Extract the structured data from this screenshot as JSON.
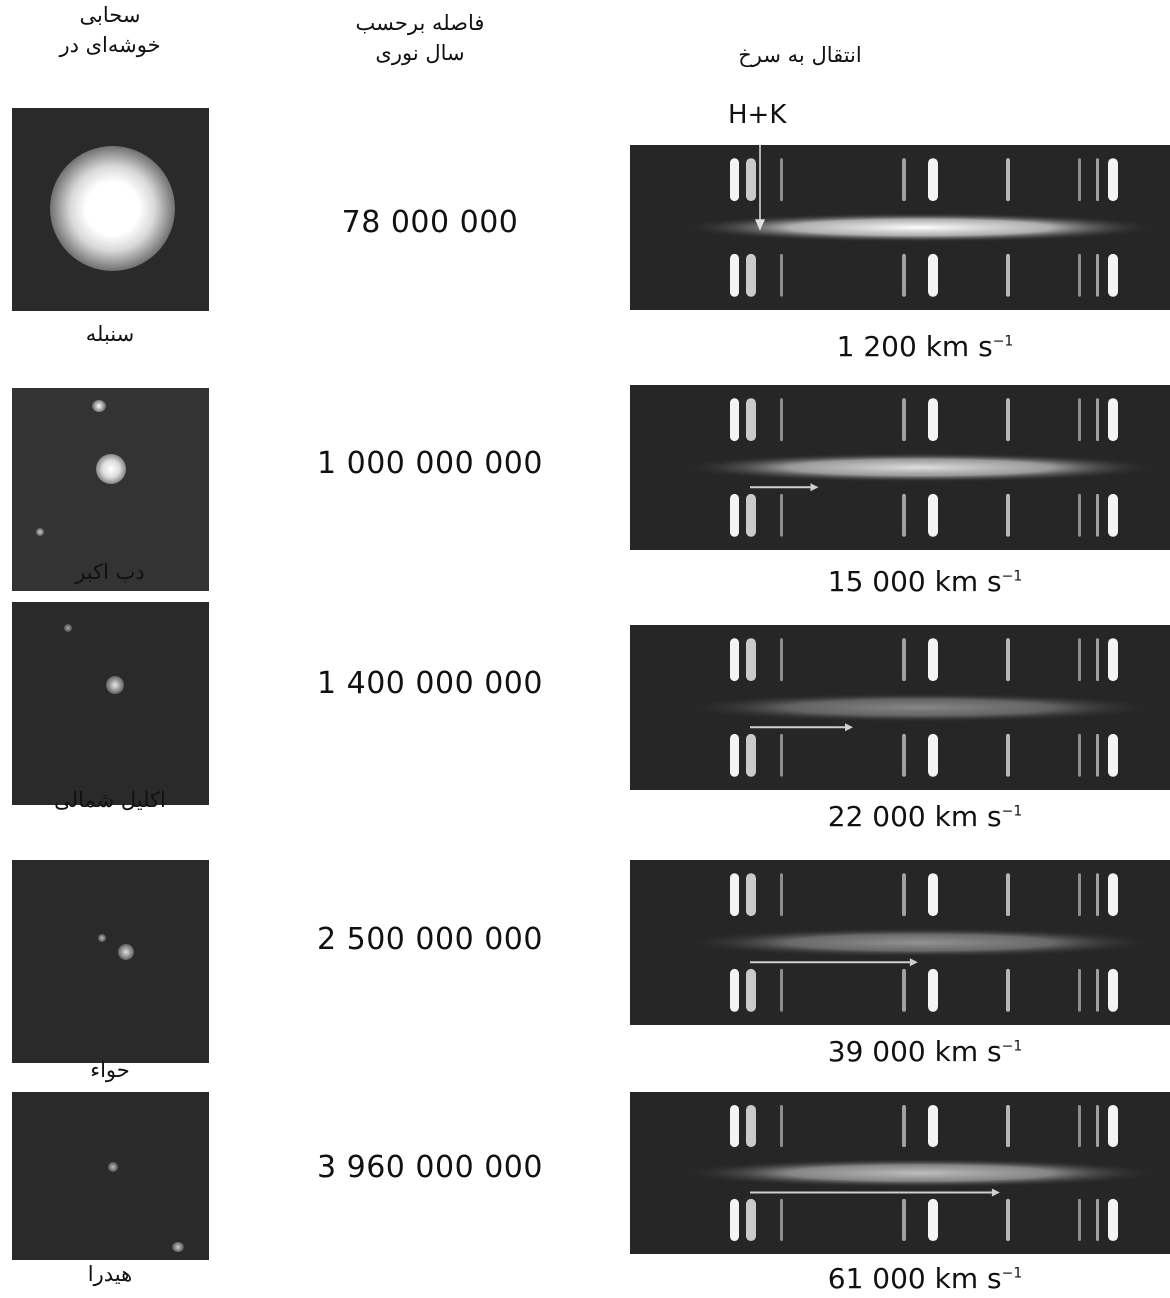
{
  "headers": {
    "cluster_line1": "سحابی",
    "cluster_line2": "خوشه‌ای در",
    "distance_line1": "فاصله برحسب",
    "distance_line2": "سال نوری",
    "redshift": "انتقال به سرخ"
  },
  "hk_label": "H+K",
  "rows": [
    {
      "name": "سنبله",
      "distance": "78 000 000",
      "velocity": "1 200 km s",
      "unit_exp": "−1",
      "shift_fraction": 0.0
    },
    {
      "name": "دب اکبر",
      "distance": "1 000 000 000",
      "velocity": "15 000 km s",
      "unit_exp": "−1",
      "shift_fraction": 0.14
    },
    {
      "name": "اکلیل شمالی",
      "distance": "1 400 000 000",
      "velocity": "22 000 km s",
      "unit_exp": "−1",
      "shift_fraction": 0.22
    },
    {
      "name": "حواء",
      "distance": "2 500 000 000",
      "velocity": "39 000 km s",
      "unit_exp": "−1",
      "shift_fraction": 0.37
    },
    {
      "name": "هیدرا",
      "distance": "3 960 000 000",
      "velocity": "61 000 km s",
      "unit_exp": "−1",
      "shift_fraction": 0.56
    }
  ]
}
